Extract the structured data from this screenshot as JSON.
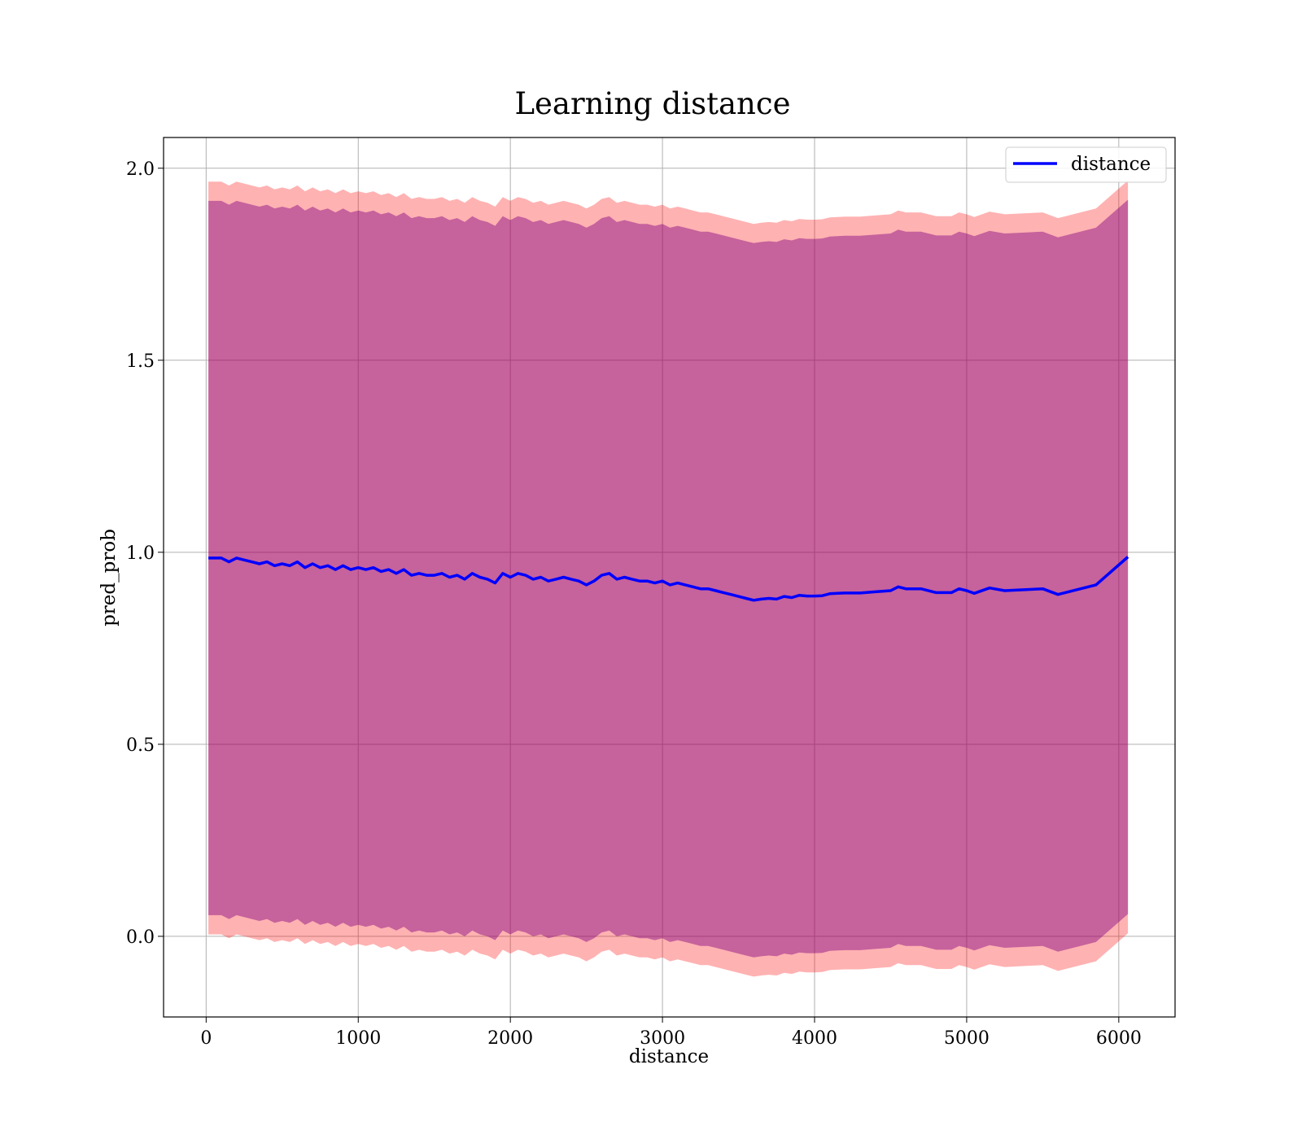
{
  "chart_data": {
    "type": "line",
    "title": "Learning distance",
    "xlabel": "distance",
    "ylabel": "pred_prob",
    "xlim": [
      -280,
      6370
    ],
    "ylim": [
      -0.21,
      2.08
    ],
    "xticks": [
      0,
      1000,
      2000,
      3000,
      4000,
      5000,
      6000
    ],
    "xtick_labels": [
      "0",
      "1000",
      "2000",
      "3000",
      "4000",
      "5000",
      "6000"
    ],
    "yticks": [
      0.0,
      0.5,
      1.0,
      1.5,
      2.0
    ],
    "ytick_labels": [
      "0.0",
      "0.5",
      "1.0",
      "1.5",
      "2.0"
    ],
    "grid": true,
    "legend_position": "top-right",
    "legend": [
      "distance"
    ],
    "colors": {
      "line": "#0000ff",
      "outer_band": "#ff0000",
      "inner_band": "#800080",
      "axes": "#000000",
      "grid": "#b0b0b0"
    },
    "series": [
      {
        "name": "distance",
        "x": [
          15,
          100,
          150,
          200,
          250,
          300,
          350,
          400,
          450,
          500,
          550,
          600,
          650,
          700,
          750,
          800,
          850,
          900,
          950,
          1000,
          1050,
          1100,
          1150,
          1200,
          1250,
          1300,
          1350,
          1400,
          1450,
          1500,
          1550,
          1600,
          1650,
          1700,
          1750,
          1800,
          1850,
          1900,
          1950,
          2000,
          2050,
          2100,
          2150,
          2200,
          2250,
          2300,
          2350,
          2400,
          2450,
          2500,
          2550,
          2600,
          2650,
          2700,
          2750,
          2800,
          2850,
          2900,
          2950,
          3000,
          3050,
          3100,
          3150,
          3200,
          3250,
          3300,
          3350,
          3400,
          3450,
          3500,
          3550,
          3600,
          3650,
          3700,
          3750,
          3800,
          3850,
          3900,
          3950,
          4000,
          4050,
          4100,
          4150,
          4200,
          4250,
          4300,
          4400,
          4500,
          4550,
          4600,
          4700,
          4800,
          4900,
          4950,
          5000,
          5050,
          5150,
          5250,
          5500,
          5600,
          5850,
          6060
        ],
        "y": [
          0.985,
          0.985,
          0.975,
          0.985,
          0.98,
          0.975,
          0.97,
          0.975,
          0.965,
          0.97,
          0.965,
          0.975,
          0.96,
          0.97,
          0.96,
          0.965,
          0.955,
          0.965,
          0.955,
          0.96,
          0.955,
          0.96,
          0.95,
          0.955,
          0.945,
          0.955,
          0.94,
          0.945,
          0.94,
          0.94,
          0.945,
          0.935,
          0.94,
          0.93,
          0.945,
          0.935,
          0.93,
          0.92,
          0.945,
          0.935,
          0.945,
          0.94,
          0.93,
          0.935,
          0.925,
          0.93,
          0.935,
          0.93,
          0.925,
          0.915,
          0.925,
          0.94,
          0.945,
          0.93,
          0.935,
          0.93,
          0.925,
          0.925,
          0.92,
          0.925,
          0.915,
          0.92,
          0.915,
          0.91,
          0.905,
          0.905,
          0.9,
          0.895,
          0.89,
          0.885,
          0.88,
          0.875,
          0.878,
          0.88,
          0.878,
          0.885,
          0.882,
          0.888,
          0.886,
          0.886,
          0.887,
          0.892,
          0.893,
          0.894,
          0.894,
          0.894,
          0.897,
          0.9,
          0.91,
          0.905,
          0.905,
          0.895,
          0.895,
          0.905,
          0.9,
          0.893,
          0.907,
          0.9,
          0.905,
          0.89,
          0.915,
          0.988
        ]
      }
    ],
    "bands": [
      {
        "name": "outer",
        "lower_offset": -0.98,
        "upper_offset": 0.98
      },
      {
        "name": "inner",
        "lower_offset": -0.93,
        "upper_offset": 0.93
      }
    ]
  }
}
